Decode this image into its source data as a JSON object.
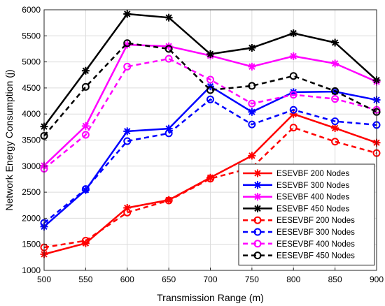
{
  "chart_data": {
    "type": "line",
    "xlabel": "Transmission Range (m)",
    "ylabel": "Network Energy Consumption (j)",
    "x": [
      500,
      550,
      600,
      650,
      700,
      750,
      800,
      850,
      900
    ],
    "xlim": [
      500,
      900
    ],
    "ylim": [
      1000,
      6000
    ],
    "xticks": [
      500,
      550,
      600,
      650,
      700,
      750,
      800,
      850,
      900
    ],
    "yticks": [
      1000,
      1500,
      2000,
      2500,
      3000,
      3500,
      4000,
      4500,
      5000,
      5500,
      6000
    ],
    "grid": true,
    "legend_position": "bottom-right",
    "series": [
      {
        "name": "ESEVBF 200 Nodes",
        "color": "#ff0000",
        "line": "solid",
        "marker": "asterisk",
        "values": [
          1310,
          1520,
          2200,
          2350,
          2780,
          3200,
          4000,
          3730,
          3450
        ]
      },
      {
        "name": "ESEVBF 300 Nodes",
        "color": "#0000ff",
        "line": "solid",
        "marker": "asterisk",
        "values": [
          1840,
          2540,
          3670,
          3720,
          4530,
          4040,
          4420,
          4430,
          4270
        ]
      },
      {
        "name": "ESEVBF 400 Nodes",
        "color": "#ff00ff",
        "line": "solid",
        "marker": "asterisk",
        "values": [
          3010,
          3770,
          5330,
          5300,
          5120,
          4910,
          5110,
          4970,
          4620
        ]
      },
      {
        "name": "ESEVBF 450 Nodes",
        "color": "#000000",
        "line": "solid",
        "marker": "asterisk",
        "values": [
          3760,
          4830,
          5920,
          5850,
          5150,
          5270,
          5550,
          5370,
          4650
        ]
      },
      {
        "name": "EESEVBF  200 Nodes",
        "color": "#ff0000",
        "line": "dashed",
        "marker": "circle",
        "values": [
          1440,
          1570,
          2110,
          2340,
          2760,
          2970,
          3740,
          3470,
          3250
        ]
      },
      {
        "name": "EESEVBF  300 Nodes",
        "color": "#0000ff",
        "line": "dashed",
        "marker": "circle",
        "values": [
          1910,
          2560,
          3480,
          3630,
          4280,
          3800,
          4080,
          3860,
          3790
        ]
      },
      {
        "name": "EESEVBF  400 Nodes",
        "color": "#ff00ff",
        "line": "dashed",
        "marker": "circle",
        "values": [
          2950,
          3600,
          4910,
          5060,
          4660,
          4200,
          4370,
          4290,
          4080
        ]
      },
      {
        "name": "EESEVBF  450 Nodes",
        "color": "#000000",
        "line": "dashed",
        "marker": "circle",
        "values": [
          3580,
          4520,
          5360,
          5250,
          4460,
          4540,
          4730,
          4440,
          4040
        ]
      }
    ]
  }
}
